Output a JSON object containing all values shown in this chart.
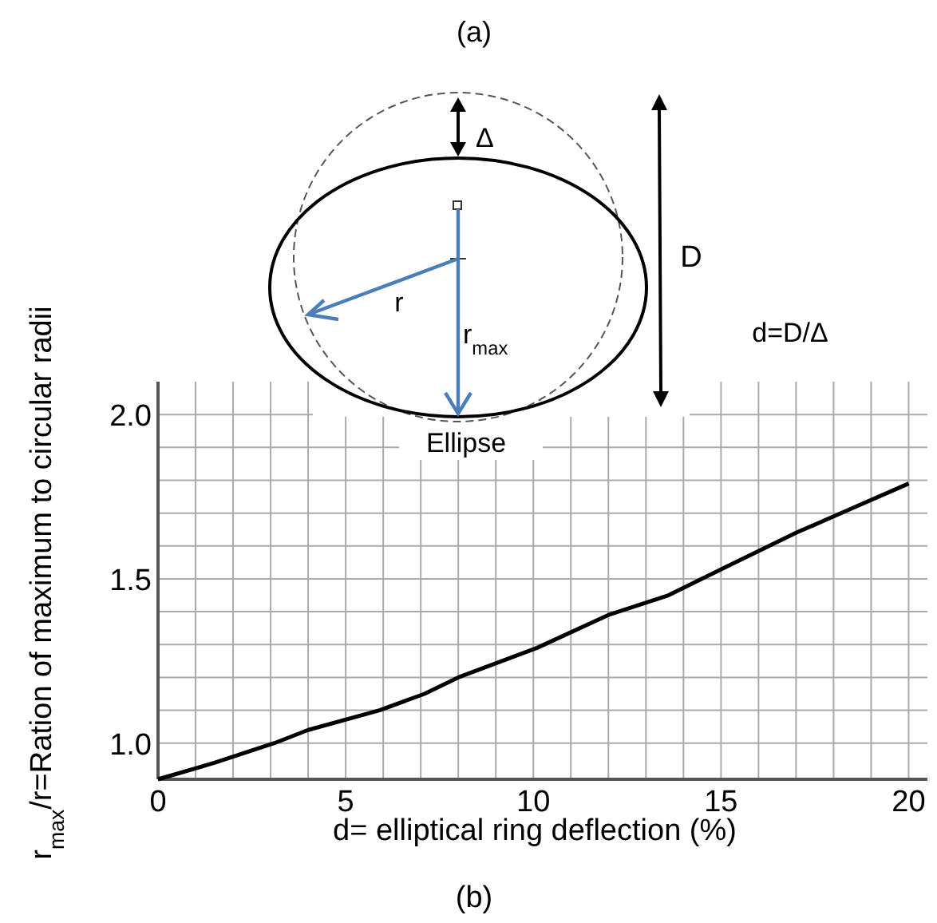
{
  "chart_data": {
    "type": "line",
    "xlabel": "d= elliptical ring deflection (%)",
    "ylabel": "r$_{max}$/r=Ration of maximum to circular radii",
    "annotations": [
      "(a)",
      "Δ",
      "D",
      "r",
      "r$_{max}$",
      "d=D/Δ",
      "Ellipse",
      "(b)"
    ],
    "x": [
      0,
      1.5,
      3.1,
      4,
      5.9,
      7.1,
      8,
      10.1,
      12,
      13.6,
      15.2,
      17,
      18.4,
      20
    ],
    "series": [
      {
        "color": "#000000",
        "values": [
          0.89,
          0.94,
          1.0,
          1.04,
          1.1,
          1.15,
          1.2,
          1.29,
          1.39,
          1.45,
          1.54,
          1.64,
          1.71,
          1.79
        ]
      }
    ],
    "xlim": [
      0,
      20.5
    ],
    "ylim": [
      0.89,
      2.1
    ],
    "xticks": [
      0,
      {
        "value": 1,
        "label": null
      },
      {
        "value": 2,
        "label": null
      },
      {
        "value": 3,
        "label": null
      },
      {
        "value": 4,
        "label": null
      },
      5,
      {
        "value": 6,
        "label": null
      },
      {
        "value": 7,
        "label": null
      },
      {
        "value": 8,
        "label": null
      },
      {
        "value": 9,
        "label": null
      },
      10,
      {
        "value": 11,
        "label": null
      },
      {
        "value": 12,
        "label": null
      },
      {
        "value": 13,
        "label": null
      },
      {
        "value": 14,
        "label": null
      },
      15,
      {
        "value": 16,
        "label": null
      },
      {
        "value": 17,
        "label": null
      },
      {
        "value": 18,
        "label": null
      },
      {
        "value": 19,
        "label": null
      },
      20
    ],
    "yticks": [
      {
        "value": 1.0,
        "label": "1.0"
      },
      {
        "value": 1.1,
        "label": null
      },
      {
        "value": 1.2,
        "label": null
      },
      {
        "value": 1.3,
        "label": null
      },
      {
        "value": 1.4,
        "label": null
      },
      1.5,
      {
        "value": 1.6,
        "label": null
      },
      {
        "value": 1.7,
        "label": null
      },
      {
        "value": 1.8,
        "label": null
      },
      {
        "value": 1.9,
        "label": null
      },
      {
        "value": 2.0,
        "label": "2.0"
      }
    ],
    "grid": true,
    "marker": "none",
    "line_style": "solid"
  }
}
